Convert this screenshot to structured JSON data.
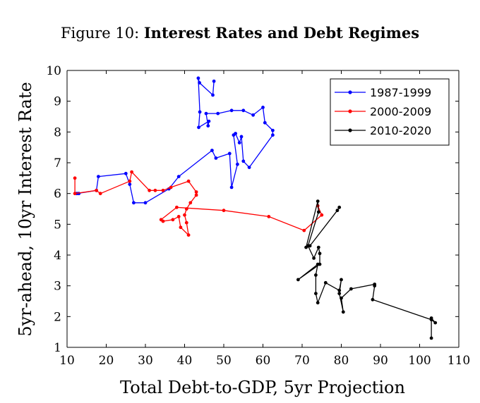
{
  "figure": {
    "title_prefix": "Figure 10:",
    "title_main": "Interest Rates and Debt Regimes"
  },
  "chart_data": {
    "type": "line",
    "title": "Figure 10: Interest Rates and Debt Regimes",
    "xlabel": "Total Debt-to-GDP, 5yr Projection",
    "ylabel": "5yr-ahead, 10yr Interest Rate",
    "xlim": [
      10,
      110
    ],
    "ylim": [
      1,
      10
    ],
    "xticks": [
      10,
      20,
      30,
      40,
      50,
      60,
      70,
      80,
      90,
      100,
      110
    ],
    "yticks": [
      1,
      2,
      3,
      4,
      5,
      6,
      7,
      8,
      9,
      10
    ],
    "grid": false,
    "legend_position": "top-right",
    "series": [
      {
        "name": "1987-1999",
        "color": "#0000ff",
        "points": [
          [
            47.5,
            9.65
          ],
          [
            47.2,
            9.2
          ],
          [
            43.8,
            9.6
          ],
          [
            43.5,
            9.75
          ],
          [
            43.9,
            8.65
          ],
          [
            43.6,
            8.15
          ],
          [
            46.2,
            8.35
          ],
          [
            46.0,
            8.2
          ],
          [
            45.5,
            8.6
          ],
          [
            48.5,
            8.6
          ],
          [
            52.0,
            8.7
          ],
          [
            55.0,
            8.7
          ],
          [
            57.5,
            8.55
          ],
          [
            60.0,
            8.8
          ],
          [
            60.5,
            8.3
          ],
          [
            62.5,
            8.05
          ],
          [
            62.5,
            7.9
          ],
          [
            56.5,
            6.85
          ],
          [
            55.0,
            7.05
          ],
          [
            54.5,
            7.85
          ],
          [
            54.0,
            7.65
          ],
          [
            53.0,
            7.95
          ],
          [
            52.5,
            7.9
          ],
          [
            53.5,
            6.95
          ],
          [
            52.0,
            6.2
          ],
          [
            51.5,
            7.3
          ],
          [
            48.0,
            7.15
          ],
          [
            47.0,
            7.4
          ],
          [
            38.5,
            6.55
          ],
          [
            36.0,
            6.15
          ],
          [
            30.0,
            5.7
          ],
          [
            27.0,
            5.7
          ],
          [
            26.0,
            6.3
          ],
          [
            25.0,
            6.65
          ],
          [
            18.0,
            6.55
          ],
          [
            17.5,
            6.1
          ],
          [
            12.5,
            6.0
          ],
          [
            13.0,
            6.0
          ]
        ]
      },
      {
        "name": "2000-2009",
        "color": "#ff0000",
        "points": [
          [
            12.0,
            6.5
          ],
          [
            12.0,
            6.0
          ],
          [
            17.5,
            6.1
          ],
          [
            18.5,
            6.0
          ],
          [
            26.0,
            6.4
          ],
          [
            26.5,
            6.7
          ],
          [
            31.0,
            6.1
          ],
          [
            32.5,
            6.1
          ],
          [
            34.5,
            6.1
          ],
          [
            36.5,
            6.2
          ],
          [
            41.0,
            6.4
          ],
          [
            43.0,
            6.05
          ],
          [
            43.0,
            5.95
          ],
          [
            41.5,
            5.7
          ],
          [
            40.5,
            5.5
          ],
          [
            40.0,
            5.3
          ],
          [
            40.5,
            5.05
          ],
          [
            41.0,
            4.65
          ],
          [
            39.0,
            4.9
          ],
          [
            38.5,
            5.25
          ],
          [
            37.0,
            5.15
          ],
          [
            34.5,
            5.1
          ],
          [
            34.0,
            5.15
          ],
          [
            38.0,
            5.55
          ],
          [
            50.0,
            5.45
          ],
          [
            61.5,
            5.25
          ],
          [
            70.5,
            4.8
          ],
          [
            75.0,
            5.3
          ],
          [
            74.0,
            5.6
          ]
        ]
      },
      {
        "name": "2010-2020",
        "color": "#000000",
        "points": [
          [
            79.5,
            5.55
          ],
          [
            79.0,
            5.45
          ],
          [
            72.0,
            4.3
          ],
          [
            71.0,
            4.25
          ],
          [
            74.0,
            5.75
          ],
          [
            74.2,
            5.4
          ],
          [
            71.5,
            4.3
          ],
          [
            73.0,
            3.9
          ],
          [
            74.2,
            4.25
          ],
          [
            74.5,
            4.05
          ],
          [
            74.5,
            3.7
          ],
          [
            69.0,
            3.2
          ],
          [
            74.0,
            3.7
          ],
          [
            73.5,
            3.35
          ],
          [
            73.5,
            2.75
          ],
          [
            74.0,
            2.45
          ],
          [
            76.0,
            3.1
          ],
          [
            79.5,
            2.85
          ],
          [
            80.0,
            3.2
          ],
          [
            79.5,
            2.75
          ],
          [
            80.5,
            2.15
          ],
          [
            80.0,
            2.6
          ],
          [
            82.5,
            2.9
          ],
          [
            88.5,
            3.05
          ],
          [
            88.5,
            3.0
          ],
          [
            88.0,
            2.55
          ],
          [
            103.0,
            1.9
          ],
          [
            104.0,
            1.8
          ],
          [
            103.0,
            1.95
          ],
          [
            103.0,
            1.3
          ]
        ]
      }
    ]
  }
}
